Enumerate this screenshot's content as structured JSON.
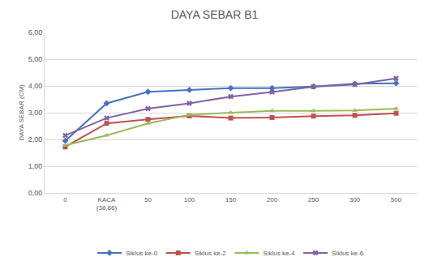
{
  "chart_data": {
    "type": "line",
    "title": "DAYA SEBAR B1",
    "y_label": "DAYA SEBAR (CM)",
    "categories": [
      "0",
      "KACA (38,66)",
      "50",
      "100",
      "150",
      "200",
      "250",
      "300",
      "500"
    ],
    "series": [
      {
        "name": "Siklus ke-0",
        "color": "#4472c4",
        "marker": "diamond",
        "values": [
          1.95,
          3.35,
          3.78,
          3.85,
          3.92,
          3.92,
          3.98,
          4.08,
          4.1
        ]
      },
      {
        "name": "Siklus ke-2",
        "color": "#c0504d",
        "marker": "square",
        "values": [
          1.72,
          2.6,
          2.75,
          2.88,
          2.8,
          2.82,
          2.87,
          2.9,
          2.98
        ]
      },
      {
        "name": "Siklus ke-4",
        "color": "#9bbb59",
        "marker": "triangle",
        "values": [
          1.78,
          2.15,
          2.6,
          2.92,
          3.0,
          3.07,
          3.07,
          3.08,
          3.15
        ]
      },
      {
        "name": "Siklus ke-6",
        "color": "#8064a2",
        "marker": "x",
        "values": [
          2.15,
          2.8,
          3.15,
          3.35,
          3.6,
          3.77,
          3.97,
          4.05,
          4.28
        ]
      }
    ],
    "ylim": [
      0,
      6
    ],
    "yticks": [
      {
        "value": 0,
        "label": "0,00"
      },
      {
        "value": 1,
        "label": "1,00"
      },
      {
        "value": 2,
        "label": "2,00"
      },
      {
        "value": 3,
        "label": "3,00"
      },
      {
        "value": 4,
        "label": "4,00"
      },
      {
        "value": 5,
        "label": "5,00"
      },
      {
        "value": 6,
        "label": "6,00"
      }
    ],
    "grid": true,
    "legend": "bottom"
  }
}
